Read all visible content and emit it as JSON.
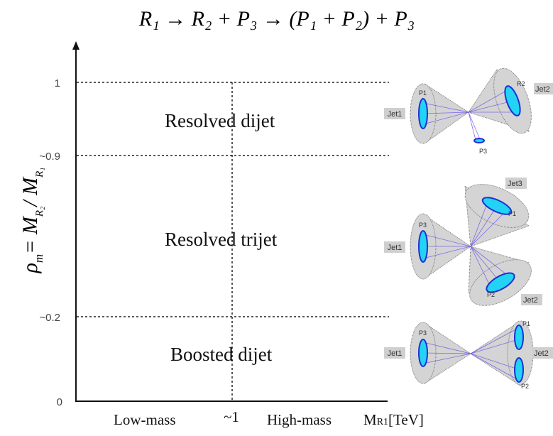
{
  "title": "R₁ → R₂ + P₃ → (P₁ + P₂) + P₃",
  "y_axis": {
    "label": [
      "ρ",
      "m",
      "= M",
      "R₂",
      "/ M",
      "R₁"
    ],
    "ticks": [
      "1",
      "~0.9",
      "~0.2",
      "0"
    ]
  },
  "x_axis": {
    "ticks": [
      "Low-mass",
      "~1",
      "High-mass"
    ],
    "label": [
      "M",
      "R1",
      "[TeV]"
    ]
  },
  "regions": [
    "Resolved dijet",
    "Resolved trijet",
    "Boosted dijet"
  ],
  "diagrams": [
    {
      "labels": [
        "Jet1",
        "P1",
        "R2",
        "Jet2",
        "P3"
      ]
    },
    {
      "labels": [
        "Jet3",
        "P1",
        "P3",
        "Jet1",
        "P2",
        "Jet2"
      ]
    },
    {
      "labels": [
        "P1",
        "P3",
        "Jet1",
        "Jet2",
        "P2"
      ]
    }
  ]
}
